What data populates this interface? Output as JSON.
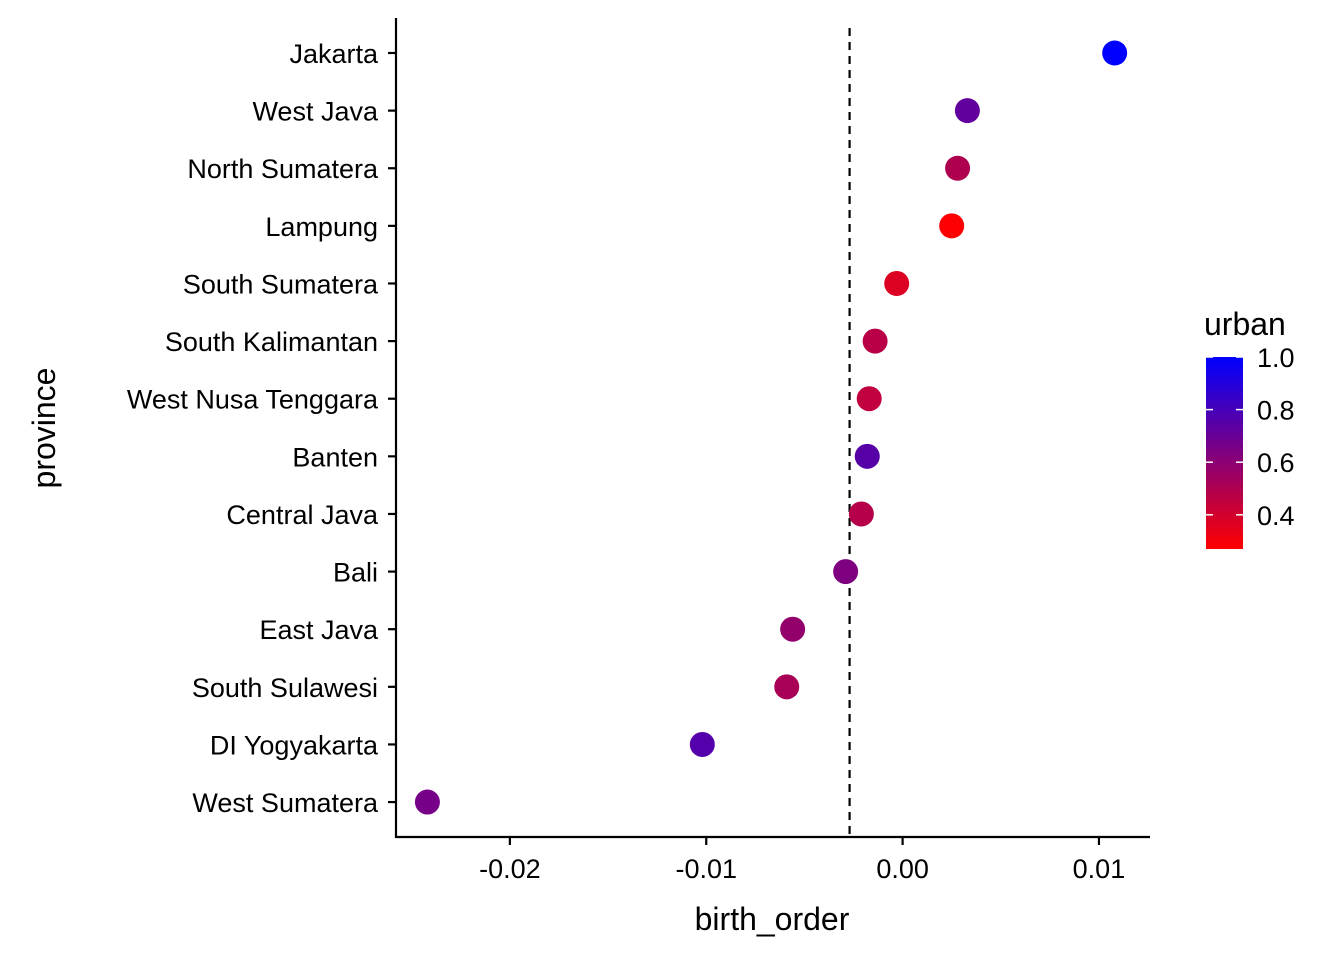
{
  "chart_data": {
    "type": "scatter",
    "xlabel": "birth_order",
    "ylabel": "province",
    "xlim": [
      -0.0258,
      0.0126
    ],
    "xticks": [
      "-0.02",
      "-0.01",
      "0.00",
      "0.01"
    ],
    "xtick_values": [
      -0.02,
      -0.01,
      0.0,
      0.01
    ],
    "reference_line": {
      "x": -0.0027,
      "style": "dashed"
    },
    "grid": false,
    "points": [
      {
        "province": "Jakarta",
        "birth_order": 0.0108,
        "urban": 1.0
      },
      {
        "province": "West Java",
        "birth_order": 0.0033,
        "urban": 0.72
      },
      {
        "province": "North Sumatera",
        "birth_order": 0.0028,
        "urban": 0.5
      },
      {
        "province": "Lampung",
        "birth_order": 0.0025,
        "urban": 0.28
      },
      {
        "province": "South Sumatera",
        "birth_order": -0.0003,
        "urban": 0.37
      },
      {
        "province": "South Kalimantan",
        "birth_order": -0.0014,
        "urban": 0.47
      },
      {
        "province": "West Nusa Tenggara",
        "birth_order": -0.0017,
        "urban": 0.45
      },
      {
        "province": "Banten",
        "birth_order": -0.0018,
        "urban": 0.75
      },
      {
        "province": "Central Java",
        "birth_order": -0.0021,
        "urban": 0.48
      },
      {
        "province": "Bali",
        "birth_order": -0.0029,
        "urban": 0.64
      },
      {
        "province": "East Java",
        "birth_order": -0.0056,
        "urban": 0.58
      },
      {
        "province": "South Sulawesi",
        "birth_order": -0.0059,
        "urban": 0.52
      },
      {
        "province": "DI Yogyakarta",
        "birth_order": -0.0102,
        "urban": 0.76
      },
      {
        "province": "West Sumatera",
        "birth_order": -0.0242,
        "urban": 0.66
      }
    ],
    "legend": {
      "title": "urban",
      "placement": "right",
      "range": [
        0.27,
        1.0
      ],
      "ticks": [
        "1.0",
        "0.8",
        "0.6",
        "0.4"
      ],
      "tick_values": [
        1.0,
        0.8,
        0.6,
        0.4
      ],
      "color_low": "#ff0000",
      "color_high": "#0000ff"
    }
  }
}
